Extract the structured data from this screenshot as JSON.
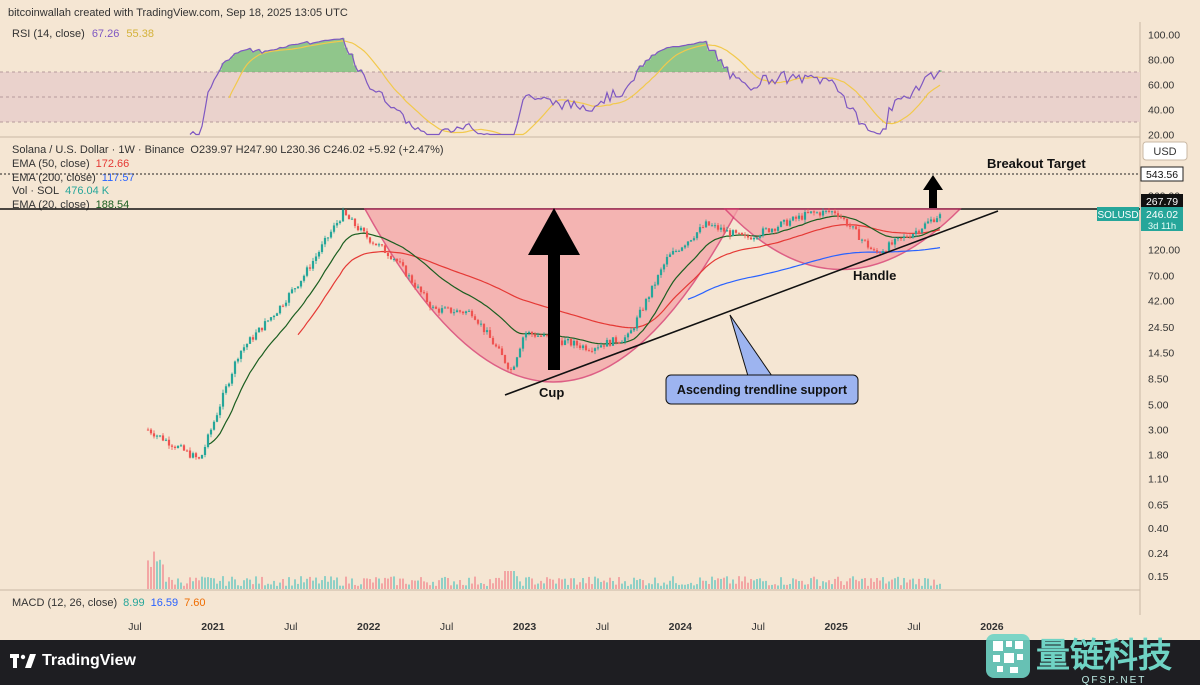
{
  "header": {
    "created_by": "bitcoinwallah created with TradingView.com, Sep 18, 2025 13:05 UTC"
  },
  "rsi": {
    "label": "RSI (14, close)",
    "value": "67.26",
    "ma_value": "55.38",
    "ticks": [
      "100.00",
      "80.00",
      "60.00",
      "40.00",
      "20.00"
    ]
  },
  "main_legend": {
    "symbol_line": "Solana / U.S. Dollar · 1W · Binance",
    "ohlc": "O239.97 H247.90 L230.36 C246.02 +5.92 (+2.47%)",
    "ema50_label": "EMA (50, close)",
    "ema50_value": "172.66",
    "ema200_label": "EMA (200, close)",
    "ema200_value": "117.57",
    "vol_label": "Vol · SOL",
    "vol_value": "476.04 K",
    "ema20_label": "EMA (20, close)",
    "ema20_value": "188.54"
  },
  "price_axis": {
    "currency": "USD",
    "ticks": [
      "560.00",
      "360.00",
      "120.00",
      "70.00",
      "42.00",
      "24.50",
      "14.50",
      "8.50",
      "5.00",
      "3.00",
      "1.80",
      "1.10",
      "0.65",
      "0.40",
      "0.24",
      "0.15"
    ],
    "target_label": "543.56",
    "neckline_label": "267.79",
    "symbol_tag": "SOLUSD",
    "last_price": "246.02",
    "countdown": "3d 11h"
  },
  "annotations": {
    "breakout": "Breakout Target",
    "cup": "Cup",
    "handle": "Handle",
    "trendline": "Ascending trendline support"
  },
  "macd": {
    "label": "MACD (12, 26, close)",
    "v1": "8.99",
    "v2": "16.59",
    "v3": "7.60"
  },
  "time_axis": {
    "labels": [
      "Jul",
      "2021",
      "Jul",
      "2022",
      "Jul",
      "2023",
      "Jul",
      "2024",
      "Jul",
      "2025",
      "Jul",
      "2026"
    ]
  },
  "branding": {
    "tradingview": "TradingView",
    "qfsp_cn": "量链科技",
    "qfsp_url": "QFSP.NET"
  },
  "colors": {
    "background": "#f5e6d3",
    "rsi_line": "#7e57c2",
    "rsi_ma": "#f2c94c",
    "ema50": "#e53935",
    "ema200": "#2962ff",
    "ema20": "#1b5e20",
    "up_candle": "#26a69a",
    "down_candle": "#ef5350",
    "cup_fill": "#f4a4a8",
    "cup_stroke": "#d6336c",
    "callout_fill": "#9db4f0"
  },
  "chart_data": {
    "type": "candlestick",
    "scale": "log",
    "x_range": [
      "2020-08",
      "2025-09"
    ],
    "y_range": [
      0.15,
      560
    ],
    "price_checkpoints": [
      {
        "date": "2020-08",
        "price": 3.0
      },
      {
        "date": "2020-12",
        "price": 1.6
      },
      {
        "date": "2021-03",
        "price": 14.5
      },
      {
        "date": "2021-06",
        "price": 35
      },
      {
        "date": "2021-08",
        "price": 70
      },
      {
        "date": "2021-11",
        "price": 250
      },
      {
        "date": "2022-01",
        "price": 150
      },
      {
        "date": "2022-03",
        "price": 100
      },
      {
        "date": "2022-06",
        "price": 35
      },
      {
        "date": "2022-09",
        "price": 33
      },
      {
        "date": "2022-12",
        "price": 10
      },
      {
        "date": "2023-01",
        "price": 22
      },
      {
        "date": "2023-06",
        "price": 16
      },
      {
        "date": "2023-09",
        "price": 20
      },
      {
        "date": "2023-12",
        "price": 100
      },
      {
        "date": "2024-03",
        "price": 200
      },
      {
        "date": "2024-06",
        "price": 150
      },
      {
        "date": "2024-11",
        "price": 250
      },
      {
        "date": "2025-01",
        "price": 260
      },
      {
        "date": "2025-04",
        "price": 110
      },
      {
        "date": "2025-07",
        "price": 170
      },
      {
        "date": "2025-09",
        "price": 246.02
      }
    ],
    "neckline": 267.79,
    "breakout_target": 543.56
  }
}
